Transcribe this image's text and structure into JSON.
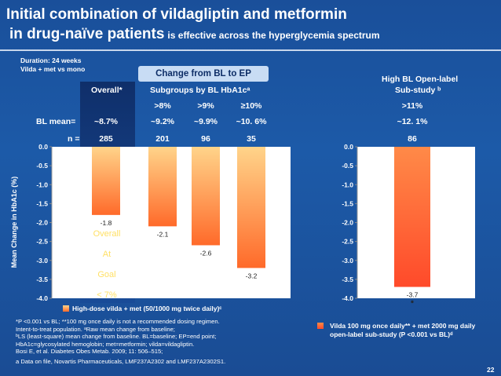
{
  "title": {
    "line1": "Initial combination of vildagliptin and metformin",
    "line2": "in drug-naïve patients",
    "line2_sub": "is effective across the hyperglycemia spectrum"
  },
  "duration": "Duration: 24 weeks",
  "comparison": "Vilda + met vs mono",
  "change_header": "Change from BL to EP",
  "col_overall": "Overall*",
  "col_subgroups": "Subgroups by BL HbA1cᵃ",
  "row_bl_mean": "BL mean=",
  "row_n": "n =",
  "open_label_title": "High BL Open-label",
  "open_label_subtitle": "Sub-study ᵇ",
  "overlay_text": [
    "Overall",
    "At",
    "Goal",
    "< 7%"
  ],
  "legend_left": "High-dose vilda + met (50/1000 mg twice daily)ᶜ",
  "legend_right": "Vilda 100 mg once daily** + met 2000 mg daily open-label sub-study (P <0.001 vs BL)ᵈ",
  "footnotes": [
    "*P <0.001 vs BL; **100 mg once daily is not a recommended dosing regimen.",
    "Intent-to-treat population. ᵃRaw mean change from baseline;",
    "ᵇLS (least-square) mean change from baseline. BL=baseline; EP=end point;",
    "HbA1c=glycosylated hemoglobin; met=metformin; vilda=vildagliptin.",
    "Bosi E, et al. Diabetes Obes Metab. 2009; 11: 506–515;",
    "a Data on file, Novartis Pharmaceuticals, LMF237A2302 and LMF237A2302S1."
  ],
  "page_number": "22",
  "colors": {
    "bar_top": "#ff6a2a",
    "bar_bottom": "#ffd48a",
    "background": "#1c5aa8"
  },
  "chart_data": [
    {
      "type": "bar",
      "title": "Change from BL to EP",
      "ylabel": "Mean Change in HbA1c (%)",
      "ylim": [
        -4.0,
        0.0
      ],
      "yticks": [
        "0.0",
        "-0.5",
        "-1.0",
        "-1.5",
        "-2.0",
        "-2.5",
        "-3.0",
        "-3.5",
        "-4.0"
      ],
      "categories": [
        "Overall*",
        ">8%",
        ">9%",
        "≥10%"
      ],
      "bl_mean": [
        "~8.7%",
        "~9.2%",
        "~9.9%",
        "~10. 6%"
      ],
      "n": [
        "285",
        "201",
        "96",
        "35"
      ],
      "values": [
        -1.8,
        -2.1,
        -2.6,
        -3.2
      ],
      "value_labels": [
        "-1.8",
        "-2.1",
        "-2.6",
        "-3.2"
      ],
      "legend": "High-dose vilda + met (50/1000 mg twice daily)ᶜ"
    },
    {
      "type": "bar",
      "title": "High BL Open-label Sub-study ᵇ",
      "ylim": [
        -4.0,
        0.0
      ],
      "yticks": [
        "0.0",
        "-0.5",
        "-1.0",
        "-1.5",
        "-2.0",
        "-2.5",
        "-3.0",
        "-3.5",
        "-4.0"
      ],
      "categories": [
        ">11%"
      ],
      "bl_mean": [
        "~12. 1%"
      ],
      "n": [
        "86"
      ],
      "values": [
        -3.7
      ],
      "value_labels": [
        "-3.7"
      ],
      "annotation": "*"
    }
  ]
}
